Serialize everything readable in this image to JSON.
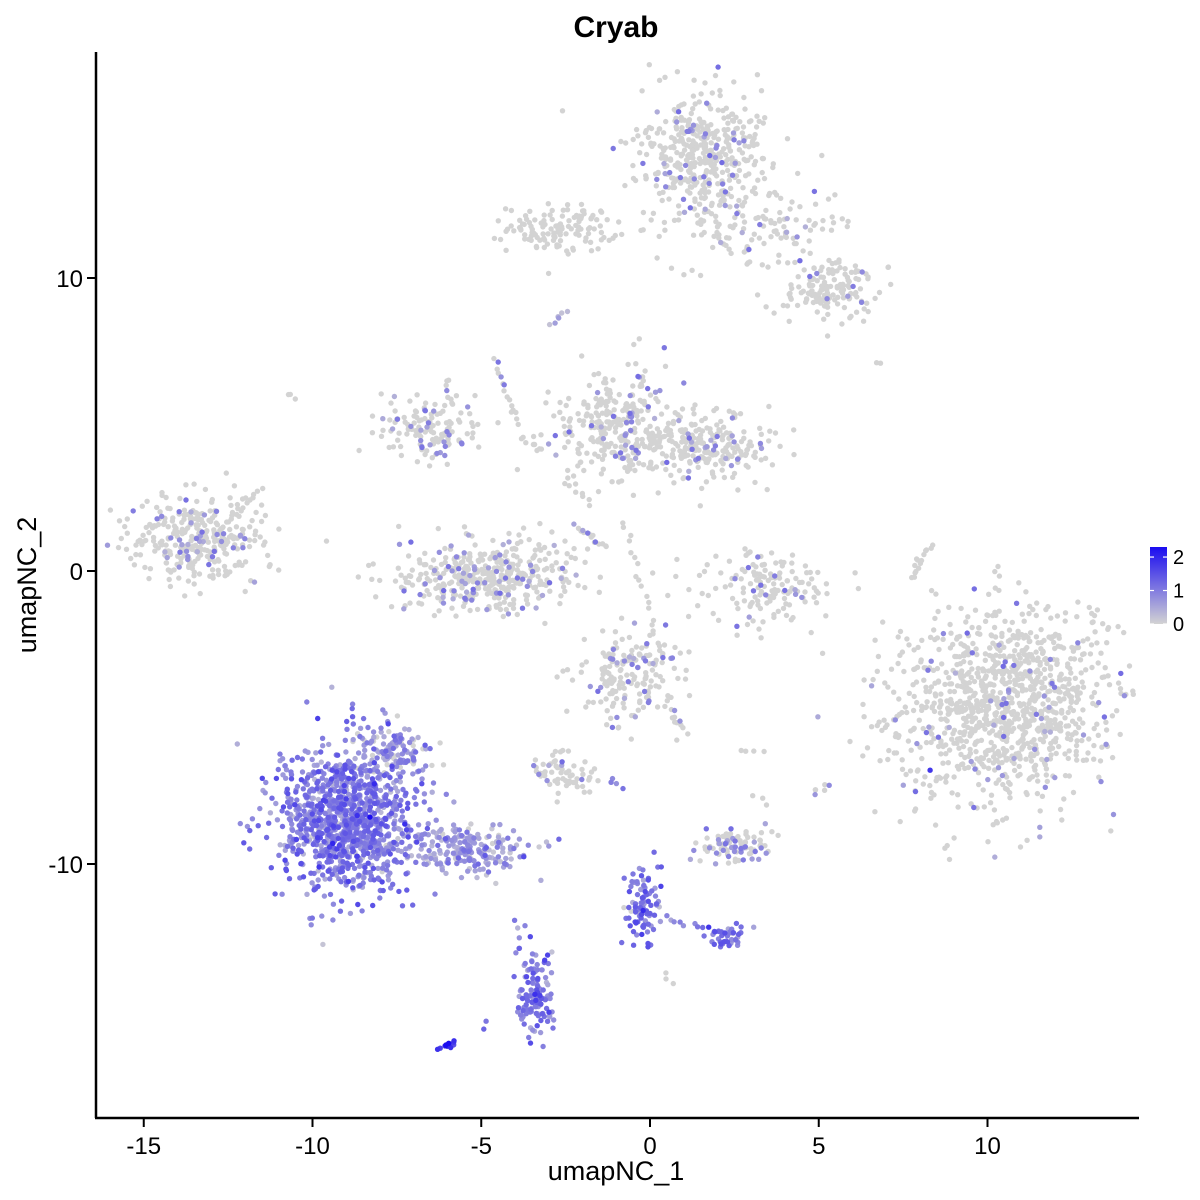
{
  "chart_data": {
    "type": "scatter",
    "title": "Cryab",
    "xlabel": "umapNC_1",
    "ylabel": "umapNC_2",
    "xlim": [
      -16.5,
      14.5
    ],
    "ylim": [
      -18.5,
      17.5
    ],
    "xticks": [
      -15,
      -10,
      -5,
      0,
      5,
      10
    ],
    "yticks": [
      -10,
      0,
      10
    ],
    "grid": false,
    "color_scale": {
      "low": "#d3d3d3",
      "high": "#1a0cf0",
      "range": [
        0,
        2.3
      ],
      "legend_ticks": [
        0,
        1,
        2
      ],
      "legend_placement": "right"
    },
    "clusters": [
      {
        "cx": 1.6,
        "cy": 14.3,
        "sx": 1.0,
        "sy": 1.0,
        "n": 420,
        "expr": 0.03
      },
      {
        "cx": -2.6,
        "cy": 11.7,
        "sx": 0.8,
        "sy": 0.4,
        "n": 130,
        "expr": 0.0
      },
      {
        "cx": 3.3,
        "cy": 11.8,
        "sx": 1.3,
        "sy": 0.8,
        "n": 130,
        "expr": 0.02
      },
      {
        "cx": 5.4,
        "cy": 9.6,
        "sx": 0.8,
        "sy": 0.6,
        "n": 150,
        "expr": 0.02
      },
      {
        "cx": -13.4,
        "cy": 1.1,
        "sx": 1.0,
        "sy": 0.7,
        "n": 330,
        "expr": 0.05
      },
      {
        "cx": -6.5,
        "cy": 4.9,
        "sx": 0.8,
        "sy": 0.6,
        "n": 140,
        "expr": 0.05
      },
      {
        "cx": -4.8,
        "cy": -0.2,
        "sx": 1.3,
        "sy": 0.6,
        "n": 420,
        "expr": 0.06
      },
      {
        "cx": -0.9,
        "cy": 5.0,
        "sx": 1.0,
        "sy": 0.9,
        "n": 320,
        "expr": 0.05
      },
      {
        "cx": 1.7,
        "cy": 4.2,
        "sx": 1.0,
        "sy": 0.5,
        "n": 220,
        "expr": 0.05
      },
      {
        "cx": 3.5,
        "cy": -0.6,
        "sx": 0.9,
        "sy": 0.6,
        "n": 150,
        "expr": 0.03
      },
      {
        "cx": 10.6,
        "cy": -4.5,
        "sx": 1.6,
        "sy": 1.6,
        "n": 1100,
        "expr": 0.02
      },
      {
        "cx": -0.6,
        "cy": -3.6,
        "sx": 0.7,
        "sy": 0.8,
        "n": 180,
        "expr": 0.06
      },
      {
        "cx": -2.7,
        "cy": -6.9,
        "sx": 0.5,
        "sy": 0.35,
        "n": 60,
        "expr": 0.04
      },
      {
        "cx": 2.4,
        "cy": -9.4,
        "sx": 0.6,
        "sy": 0.3,
        "n": 90,
        "expr": 0.12
      },
      {
        "cx": -9.0,
        "cy": -8.5,
        "sx": 1.0,
        "sy": 1.2,
        "n": 1100,
        "expr": 0.95
      },
      {
        "cx": -7.7,
        "cy": -6.2,
        "sx": 0.5,
        "sy": 0.5,
        "n": 120,
        "expr": 0.25
      },
      {
        "cx": -5.5,
        "cy": -9.5,
        "sx": 1.0,
        "sy": 0.4,
        "n": 220,
        "expr": 0.6
      },
      {
        "cx": -3.4,
        "cy": -14.5,
        "sx": 0.25,
        "sy": 0.7,
        "n": 140,
        "expr": 1.0
      },
      {
        "cx": -0.2,
        "cy": -11.3,
        "sx": 0.25,
        "sy": 0.7,
        "n": 90,
        "expr": 1.1
      },
      {
        "cx": 2.3,
        "cy": -12.5,
        "sx": 0.3,
        "sy": 0.2,
        "n": 40,
        "expr": 1.0
      }
    ],
    "paths": [
      {
        "x": [
          -3.0,
          -2.5
        ],
        "y": [
          8.4,
          8.9
        ],
        "n": 6,
        "expr": 0.3
      },
      {
        "x": [
          -4.6,
          -3.9
        ],
        "y": [
          7.3,
          5.0
        ],
        "n": 15,
        "expr": 0.05
      },
      {
        "x": [
          -3.8,
          -3.2
        ],
        "y": [
          4.5,
          4.1
        ],
        "n": 8,
        "expr": 0.0
      },
      {
        "x": [
          -10.7,
          -10.5
        ],
        "y": [
          6.1,
          5.9
        ],
        "n": 3,
        "expr": 0.0
      },
      {
        "x": [
          -12.5,
          -11.5
        ],
        "y": [
          1.8,
          2.8
        ],
        "n": 12,
        "expr": 0.0
      },
      {
        "x": [
          -3.2,
          -1.9
        ],
        "y": [
          1.7,
          0.6
        ],
        "n": 5,
        "expr": 0.0
      },
      {
        "x": [
          -2.2,
          -1.3
        ],
        "y": [
          1.5,
          0.8
        ],
        "n": 15,
        "expr": 0.1
      },
      {
        "x": [
          -2.4,
          -1.8
        ],
        "y": [
          3.1,
          2.3
        ],
        "n": 8,
        "expr": 0.0
      },
      {
        "x": [
          -0.8,
          0.3
        ],
        "y": [
          1.7,
          -2.6
        ],
        "n": 18,
        "expr": 0.0
      },
      {
        "x": [
          7.7,
          8.3
        ],
        "y": [
          -0.2,
          0.9
        ],
        "n": 15,
        "expr": 0.0
      },
      {
        "x": [
          6.7,
          6.8
        ],
        "y": [
          7.0,
          7.1
        ],
        "n": 2,
        "expr": 0.0
      },
      {
        "x": [
          0.5,
          1.1
        ],
        "y": [
          -4.6,
          -5.5
        ],
        "n": 10,
        "expr": 0.1
      },
      {
        "x": [
          2.7,
          3.3
        ],
        "y": [
          -6.1,
          -6.2
        ],
        "n": 4,
        "expr": 0.0
      },
      {
        "x": [
          3.1,
          3.5
        ],
        "y": [
          -7.7,
          -7.9
        ],
        "n": 3,
        "expr": 0.0
      },
      {
        "x": [
          4.8,
          5.3
        ],
        "y": [
          -7.6,
          -7.3
        ],
        "n": 6,
        "expr": 0.05
      },
      {
        "x": [
          -1.7,
          -1.9
        ],
        "y": [
          -6.8,
          -7.6
        ],
        "n": 5,
        "expr": 0.05
      },
      {
        "x": [
          -1.2,
          -0.8
        ],
        "y": [
          -7.1,
          -7.4
        ],
        "n": 4,
        "expr": 0.7
      },
      {
        "x": [
          -6.2,
          -5.8
        ],
        "y": [
          -16.3,
          -16.1
        ],
        "n": 12,
        "expr": 1.9
      },
      {
        "x": [
          -4.9,
          -4.8
        ],
        "y": [
          -15.6,
          -15.5
        ],
        "n": 2,
        "expr": 1.0
      },
      {
        "x": [
          -4.0,
          -3.9
        ],
        "y": [
          -12.0,
          -12.5
        ],
        "n": 3,
        "expr": 0.8
      },
      {
        "x": [
          0.4,
          2.2
        ],
        "y": [
          -11.9,
          -12.3
        ],
        "n": 12,
        "expr": 1.0
      },
      {
        "x": [
          0.4,
          0.6
        ],
        "y": [
          -13.8,
          -14.0
        ],
        "n": 3,
        "expr": 0.1
      },
      {
        "x": [
          -0.8,
          -0.6
        ],
        "y": [
          -11.4,
          -11.6
        ],
        "n": 2,
        "expr": 0.0
      }
    ],
    "highlights": [
      {
        "x": -8.3,
        "y": -8.4,
        "v": 2.3
      },
      {
        "x": -9.4,
        "y": -9.3,
        "v": 2.0
      },
      {
        "x": 8.3,
        "y": -6.8,
        "v": 1.8
      },
      {
        "x": -6.0,
        "y": -16.2,
        "v": 2.0
      }
    ]
  }
}
